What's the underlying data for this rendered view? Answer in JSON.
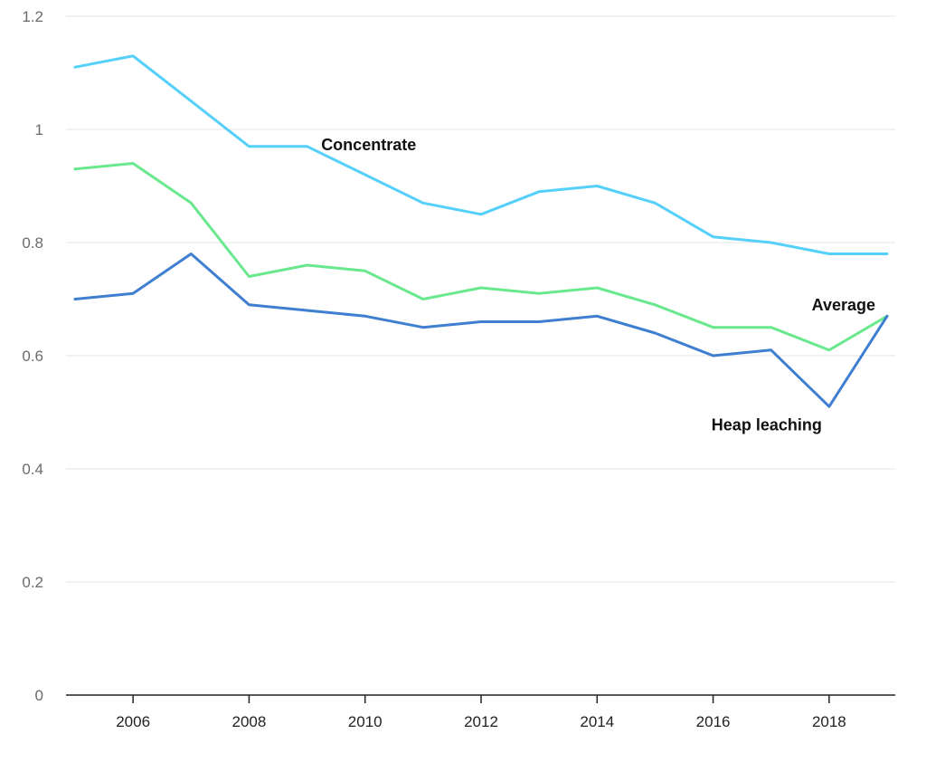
{
  "chart_data": {
    "type": "line",
    "x": [
      2005,
      2006,
      2007,
      2008,
      2009,
      2010,
      2011,
      2012,
      2013,
      2014,
      2015,
      2016,
      2017,
      2018,
      2019
    ],
    "series": [
      {
        "name": "Concentrate",
        "color": "#55d0fb",
        "values": [
          1.11,
          1.13,
          1.05,
          0.97,
          0.97,
          0.92,
          0.87,
          0.85,
          0.89,
          0.9,
          0.87,
          0.81,
          0.8,
          0.78,
          0.78
        ]
      },
      {
        "name": "Average",
        "color": "#69e88e",
        "values": [
          0.93,
          0.94,
          0.87,
          0.74,
          0.76,
          0.75,
          0.7,
          0.72,
          0.71,
          0.72,
          0.69,
          0.65,
          0.65,
          0.61,
          0.67
        ]
      },
      {
        "name": "Heap leaching",
        "color": "#3f7fd1",
        "values": [
          0.7,
          0.71,
          0.78,
          0.69,
          0.68,
          0.67,
          0.65,
          0.66,
          0.66,
          0.67,
          0.64,
          0.6,
          0.61,
          0.51,
          0.67
        ]
      }
    ],
    "y_ticks": [
      "0",
      "0.2",
      "0.4",
      "0.6",
      "0.8",
      "1",
      "1.2"
    ],
    "x_ticks": [
      "2006",
      "2008",
      "2010",
      "2012",
      "2014",
      "2016",
      "2018"
    ],
    "ylim": [
      0,
      1.2
    ],
    "xlim": [
      2005,
      2019
    ],
    "grid": "horizontal",
    "legend": "direct labels on lines",
    "title": "",
    "xlabel": "",
    "ylabel": ""
  }
}
